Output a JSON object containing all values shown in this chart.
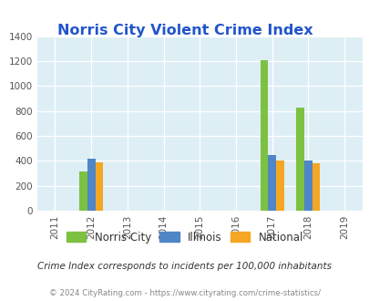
{
  "title": "Norris City Violent Crime Index",
  "title_color": "#2255cc",
  "years": [
    2011,
    2012,
    2013,
    2014,
    2015,
    2016,
    2017,
    2018,
    2019
  ],
  "norris_city": [
    0,
    315,
    0,
    0,
    0,
    0,
    1205,
    825,
    0
  ],
  "illinois": [
    0,
    415,
    0,
    0,
    0,
    0,
    445,
    405,
    0
  ],
  "national": [
    0,
    390,
    0,
    0,
    0,
    0,
    400,
    380,
    0
  ],
  "norris_color": "#7dc142",
  "illinois_color": "#4f86c6",
  "national_color": "#f5a623",
  "bg_color": "#ddeef5",
  "ylim": [
    0,
    1400
  ],
  "yticks": [
    0,
    200,
    400,
    600,
    800,
    1000,
    1200,
    1400
  ],
  "subtitle": "Crime Index corresponds to incidents per 100,000 inhabitants",
  "footer": "© 2024 CityRating.com - https://www.cityrating.com/crime-statistics/",
  "bar_width": 0.22,
  "legend_labels": [
    "Norris City",
    "Illinois",
    "National"
  ]
}
